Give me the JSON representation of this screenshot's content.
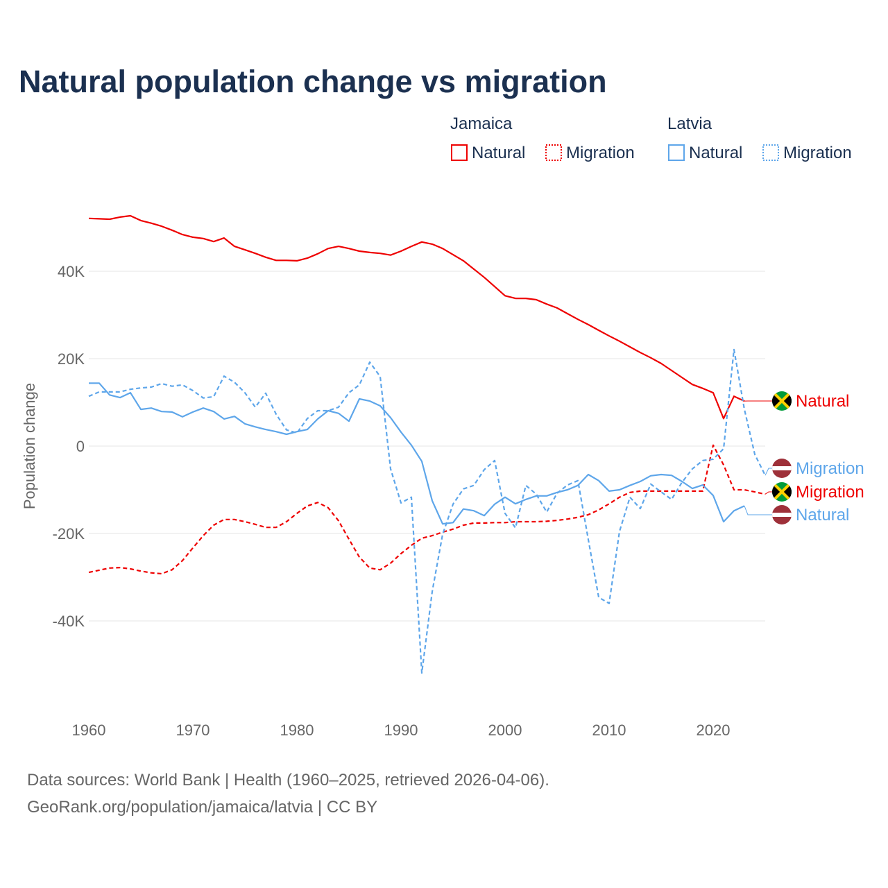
{
  "chart_data": {
    "type": "line",
    "title": "Natural population change vs migration",
    "ylabel": "Population change",
    "xlabel": "",
    "xlim": [
      1960,
      2025
    ],
    "ylim": [
      -55000,
      55000
    ],
    "x_ticks": [
      1960,
      1970,
      1980,
      1990,
      2000,
      2010,
      2020
    ],
    "x_tick_labels": [
      "1960",
      "1970",
      "1980",
      "1990",
      "2000",
      "2010",
      "2020"
    ],
    "y_ticks": [
      -40000,
      -20000,
      0,
      20000,
      40000
    ],
    "y_tick_labels": [
      "-40K",
      "-20K",
      "0",
      "20K",
      "40K"
    ],
    "grid": true,
    "legend": {
      "placement": "top-right",
      "groups": [
        {
          "title": "Jamaica",
          "items": [
            "Natural",
            "Migration"
          ]
        },
        {
          "title": "Latvia",
          "items": [
            "Natural",
            "Migration"
          ]
        }
      ]
    },
    "series": [
      {
        "name": "Jamaica Natural",
        "country": "Jamaica",
        "kind": "Natural",
        "label": "Natural",
        "color": "#ee0000",
        "dash": false,
        "start": 1960,
        "values": [
          52.1,
          52,
          51.9,
          52.4,
          52.7,
          51.6,
          51,
          50.3,
          49.4,
          48.4,
          47.8,
          47.5,
          46.8,
          47.6,
          45.7,
          44.9,
          44.1,
          43.2,
          42.5,
          42.5,
          42.4,
          43,
          44,
          45.2,
          45.7,
          45.2,
          44.6,
          44.3,
          44.1,
          43.7,
          44.6,
          45.7,
          46.7,
          46.2,
          45.2,
          43.8,
          42.4,
          40.5,
          38.6,
          36.5,
          34.4,
          33.8,
          33.8,
          33.5,
          32.5,
          31.6,
          30.3,
          29,
          27.8,
          26.5,
          25.2,
          24,
          22.7,
          21.4,
          20.2,
          18.9,
          17.3,
          15.7,
          14.1,
          13.2,
          12.2,
          6.3,
          11.4,
          10.3
        ]
      },
      {
        "name": "Jamaica Migration",
        "country": "Jamaica",
        "kind": "Migration",
        "label": "Migration",
        "color": "#ee0000",
        "dash": true,
        "start": 1960,
        "values": [
          -28.9,
          -28.4,
          -27.9,
          -27.8,
          -28.1,
          -28.6,
          -29,
          -29.2,
          -28.3,
          -26.2,
          -23.3,
          -20.5,
          -18.1,
          -16.8,
          -16.8,
          -17.3,
          -17.9,
          -18.6,
          -18.6,
          -17.3,
          -15.4,
          -13.7,
          -12.9,
          -14.1,
          -17.1,
          -21.3,
          -25.4,
          -27.9,
          -28.3,
          -26.8,
          -24.6,
          -22.7,
          -21.1,
          -20.5,
          -19.7,
          -19,
          -18.1,
          -17.6,
          -17.6,
          -17.5,
          -17.5,
          -17.3,
          -17.3,
          -17.3,
          -17.2,
          -17,
          -16.7,
          -16.3,
          -15.7,
          -14.6,
          -13.2,
          -11.7,
          -10.6,
          -10.3,
          -10.3,
          -10.3,
          -10.3,
          -10.3,
          -10.3,
          -10.3,
          0.2,
          -4.3,
          -10,
          -10,
          -10.5,
          -11
        ]
      },
      {
        "name": "Latvia Natural",
        "country": "Latvia",
        "kind": "Natural",
        "label": "Natural",
        "color": "#5ea6ea",
        "dash": false,
        "start": 1960,
        "values": [
          14.4,
          14.4,
          11.7,
          11.1,
          12.2,
          8.4,
          8.7,
          7.9,
          7.8,
          6.7,
          7.8,
          8.7,
          7.9,
          6.2,
          6.8,
          5.1,
          4.4,
          3.8,
          3.3,
          2.7,
          3.3,
          3.8,
          6.2,
          8.1,
          7.5,
          5.7,
          10.8,
          10.3,
          9.2,
          6.5,
          3.2,
          0.2,
          -3.5,
          -12.5,
          -17.8,
          -17.5,
          -14.4,
          -14.8,
          -15.9,
          -13.3,
          -11.7,
          -13.2,
          -12.2,
          -11.4,
          -11.4,
          -10.6,
          -10,
          -9,
          -6.5,
          -7.9,
          -10.3,
          -10,
          -9,
          -8.1,
          -6.8,
          -6.5,
          -6.7,
          -8.1,
          -9.7,
          -8.9,
          -11.3,
          -17.3,
          -14.8,
          -13.7
        ]
      },
      {
        "name": "Latvia Migration",
        "country": "Latvia",
        "kind": "Migration",
        "label": "Migration",
        "color": "#5ea6ea",
        "dash": true,
        "start": 1960,
        "values": [
          11.4,
          12.4,
          12.4,
          12.4,
          13,
          13.3,
          13.5,
          14.3,
          13.7,
          14,
          12.7,
          11,
          11.3,
          16,
          14.6,
          12.2,
          8.9,
          12.1,
          7.3,
          3.7,
          3,
          6.3,
          8.1,
          8.1,
          8.9,
          12.2,
          14,
          19.2,
          15.9,
          -5.2,
          -13,
          -11.7,
          -51.9,
          -33.3,
          -20.2,
          -13.3,
          -9.8,
          -9,
          -5.4,
          -3.3,
          -15.4,
          -18.7,
          -9,
          -11,
          -15.1,
          -10.8,
          -8.9,
          -7.9,
          -21.4,
          -34.6,
          -36,
          -19.5,
          -11.7,
          -14.3,
          -8.7,
          -10.5,
          -12.2,
          -8.3,
          -5.2,
          -3.3,
          -3,
          -0.6,
          22.1,
          8.4,
          -1.9,
          -6.7
        ]
      }
    ],
    "value_unit": "thousands"
  },
  "footer": {
    "line1": "Data sources: World Bank | Health (1960–2025, retrieved 2026-04-06).",
    "line2": "GeoRank.org/population/jamaica/latvia | CC BY"
  },
  "colors": {
    "title": "#1b3050",
    "jamaica": "#ee0000",
    "latvia": "#5ea6ea",
    "axis_text": "#666666",
    "grid": "#e6e6e6"
  }
}
